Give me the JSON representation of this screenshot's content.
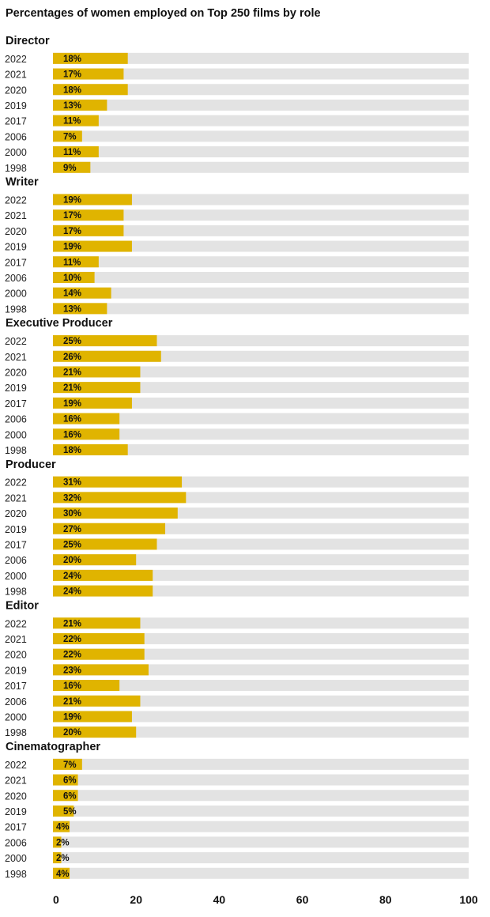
{
  "chart_data": {
    "type": "bar",
    "orientation": "horizontal",
    "title": "Percentages of women employed on Top 250 films by role",
    "xlim": [
      0,
      100
    ],
    "x_ticks": [
      0,
      20,
      40,
      60,
      80,
      100
    ],
    "value_suffix": "%",
    "colors": {
      "bar": "#e0b400",
      "track": "#e3e3e3",
      "text": "#111111"
    },
    "groups": [
      {
        "name": "Director",
        "years": [
          "2022",
          "2021",
          "2020",
          "2019",
          "2017",
          "2006",
          "2000",
          "1998"
        ],
        "values": [
          18,
          17,
          18,
          13,
          11,
          7,
          11,
          9
        ]
      },
      {
        "name": "Writer",
        "years": [
          "2022",
          "2021",
          "2020",
          "2019",
          "2017",
          "2006",
          "2000",
          "1998"
        ],
        "values": [
          19,
          17,
          17,
          19,
          11,
          10,
          14,
          13
        ]
      },
      {
        "name": "Executive Producer",
        "years": [
          "2022",
          "2021",
          "2020",
          "2019",
          "2017",
          "2006",
          "2000",
          "1998"
        ],
        "values": [
          25,
          26,
          21,
          21,
          19,
          16,
          16,
          18
        ]
      },
      {
        "name": "Producer",
        "years": [
          "2022",
          "2021",
          "2020",
          "2019",
          "2017",
          "2006",
          "2000",
          "1998"
        ],
        "values": [
          31,
          32,
          30,
          27,
          25,
          20,
          24,
          24
        ]
      },
      {
        "name": "Editor",
        "years": [
          "2022",
          "2021",
          "2020",
          "2019",
          "2017",
          "2006",
          "2000",
          "1998"
        ],
        "values": [
          21,
          22,
          22,
          23,
          16,
          21,
          19,
          20
        ]
      },
      {
        "name": "Cinematographer",
        "years": [
          "2022",
          "2021",
          "2020",
          "2019",
          "2017",
          "2006",
          "2000",
          "1998"
        ],
        "values": [
          7,
          6,
          6,
          5,
          4,
          2,
          2,
          4
        ]
      }
    ]
  }
}
